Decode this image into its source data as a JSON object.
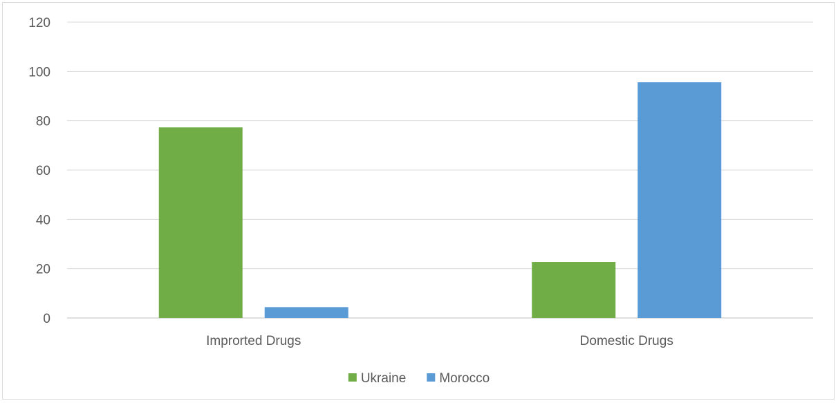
{
  "chart_data": {
    "type": "bar",
    "categories": [
      "Improrted Drugs",
      "Domestic Drugs"
    ],
    "series": [
      {
        "name": "Ukraine",
        "values": [
          77.3,
          22.7
        ],
        "color": "#70ad47"
      },
      {
        "name": "Morocco",
        "values": [
          4.4,
          95.6
        ],
        "color": "#5b9bd5"
      }
    ],
    "ylim": [
      0,
      120
    ],
    "yticks": [
      0,
      20,
      40,
      60,
      80,
      100,
      120
    ],
    "grid": true,
    "legend_position": "bottom"
  }
}
